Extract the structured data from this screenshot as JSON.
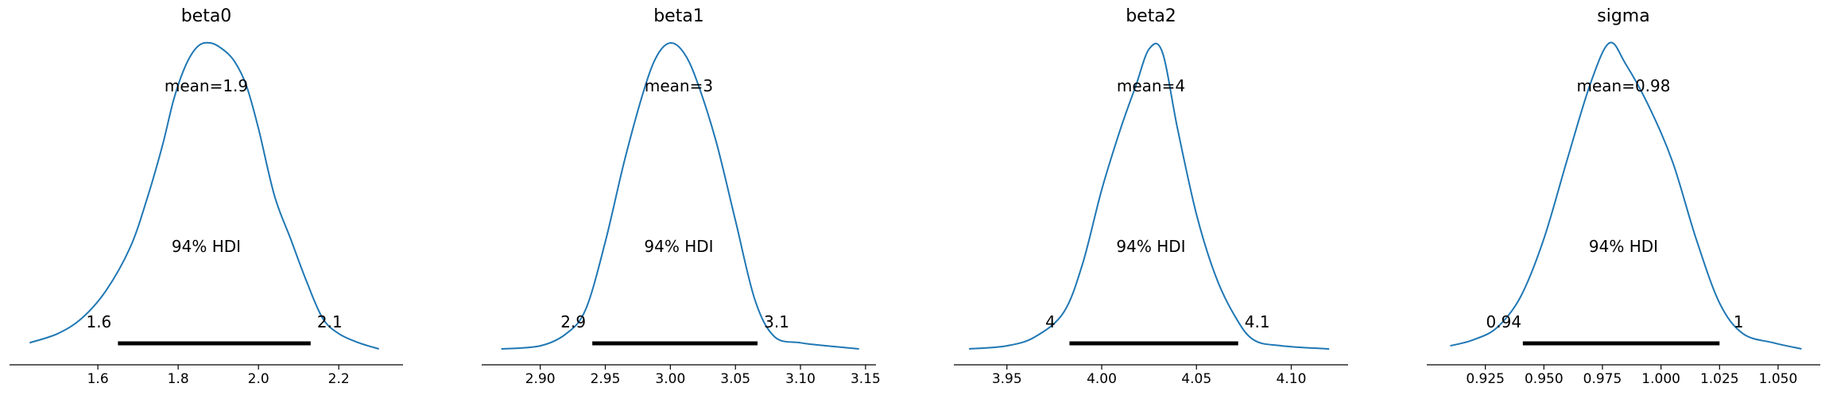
{
  "chart_data": [
    {
      "type": "line",
      "title": "beta0",
      "mean_label": "mean=1.9",
      "hdi_label": "94% HDI",
      "hdi": [
        1.65,
        2.13
      ],
      "hdi_low_label": "1.6",
      "hdi_high_label": "2.1",
      "xlim": [
        1.38,
        2.36
      ],
      "ticks": [
        1.6,
        1.8,
        2.0,
        2.2
      ],
      "tick_labels": [
        "1.6",
        "1.8",
        "2.0",
        "2.2"
      ],
      "x": [
        1.43,
        1.5,
        1.56,
        1.62,
        1.68,
        1.72,
        1.76,
        1.79,
        1.82,
        1.85,
        1.88,
        1.91,
        1.94,
        1.97,
        2.0,
        2.04,
        2.08,
        2.12,
        2.16,
        2.2,
        2.25,
        2.3
      ],
      "density": [
        0.02,
        0.05,
        0.1,
        0.19,
        0.33,
        0.48,
        0.66,
        0.82,
        0.93,
        0.99,
        1.0,
        0.98,
        0.94,
        0.86,
        0.72,
        0.5,
        0.36,
        0.22,
        0.1,
        0.05,
        0.02,
        0.0
      ]
    },
    {
      "type": "line",
      "title": "beta1",
      "mean_label": "mean=3",
      "hdi_label": "94% HDI",
      "hdi": [
        2.94,
        3.067
      ],
      "hdi_low_label": "2.9",
      "hdi_high_label": "3.1",
      "xlim": [
        2.855,
        3.158
      ],
      "ticks": [
        2.9,
        2.95,
        3.0,
        3.05,
        3.1,
        3.15
      ],
      "tick_labels": [
        "2.90",
        "2.95",
        "3.00",
        "3.05",
        "3.10",
        "3.15"
      ],
      "x": [
        2.87,
        2.9,
        2.92,
        2.935,
        2.95,
        2.965,
        2.98,
        2.99,
        3.0,
        3.01,
        3.02,
        3.035,
        3.05,
        3.065,
        3.08,
        3.1,
        3.12,
        3.145
      ],
      "density": [
        0.0,
        0.01,
        0.05,
        0.13,
        0.35,
        0.62,
        0.85,
        0.96,
        1.0,
        0.97,
        0.88,
        0.68,
        0.42,
        0.16,
        0.04,
        0.02,
        0.01,
        0.0
      ]
    },
    {
      "type": "line",
      "title": "beta2",
      "mean_label": "mean=4",
      "hdi_label": "94% HDI",
      "hdi": [
        3.983,
        4.072
      ],
      "hdi_low_label": "4",
      "hdi_high_label": "4.1",
      "xlim": [
        3.922,
        4.13
      ],
      "ticks": [
        3.95,
        4.0,
        4.05,
        4.1
      ],
      "tick_labels": [
        "3.95",
        "4.00",
        "4.05",
        "4.10"
      ],
      "x": [
        3.93,
        3.95,
        3.965,
        3.98,
        3.99,
        4.0,
        4.01,
        4.018,
        4.025,
        4.032,
        4.04,
        4.05,
        4.06,
        4.07,
        4.08,
        4.095,
        4.12
      ],
      "density": [
        0.0,
        0.01,
        0.04,
        0.12,
        0.28,
        0.52,
        0.72,
        0.86,
        0.98,
        0.97,
        0.72,
        0.44,
        0.24,
        0.11,
        0.03,
        0.01,
        0.0
      ]
    },
    {
      "type": "line",
      "title": "sigma",
      "mean_label": "mean=0.98",
      "hdi_label": "94% HDI",
      "hdi": [
        0.941,
        1.025
      ],
      "hdi_low_label": "0.94",
      "hdi_high_label": "1",
      "xlim": [
        0.9,
        1.068
      ],
      "ticks": [
        0.925,
        0.95,
        0.975,
        1.0,
        1.025,
        1.05
      ],
      "tick_labels": [
        "0.925",
        "0.950",
        "0.975",
        "1.000",
        "1.025",
        "1.050"
      ],
      "x": [
        0.91,
        0.92,
        0.93,
        0.94,
        0.95,
        0.96,
        0.97,
        0.978,
        0.985,
        0.995,
        1.005,
        1.015,
        1.025,
        1.035,
        1.048,
        1.06
      ],
      "density": [
        0.01,
        0.03,
        0.07,
        0.17,
        0.36,
        0.62,
        0.87,
        1.0,
        0.93,
        0.79,
        0.61,
        0.36,
        0.15,
        0.05,
        0.02,
        0.0
      ]
    }
  ],
  "colors": {
    "kde": "#1f77b4",
    "hdi_bar": "#000000",
    "axis": "#000000"
  }
}
